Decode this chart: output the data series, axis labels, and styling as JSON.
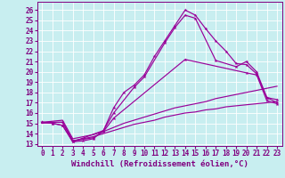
{
  "xlabel": "Windchill (Refroidissement éolien,°C)",
  "background_color": "#c8eef0",
  "line_color": "#990099",
  "xlim": [
    -0.5,
    23.5
  ],
  "ylim": [
    12.8,
    26.8
  ],
  "yticks": [
    13,
    14,
    15,
    16,
    17,
    18,
    19,
    20,
    21,
    22,
    23,
    24,
    25,
    26
  ],
  "xticks": [
    0,
    1,
    2,
    3,
    4,
    5,
    6,
    7,
    8,
    9,
    10,
    11,
    12,
    13,
    14,
    15,
    16,
    17,
    18,
    19,
    20,
    21,
    22,
    23
  ],
  "curve1_x": [
    0,
    1,
    2,
    3,
    4,
    5,
    6,
    7,
    8,
    9,
    10,
    11,
    12,
    13,
    14,
    15,
    16,
    17,
    18,
    19,
    20,
    21,
    22,
    23
  ],
  "curve1_y": [
    15.1,
    15.0,
    14.8,
    13.2,
    13.3,
    13.5,
    14.3,
    16.5,
    18.0,
    18.7,
    19.7,
    21.5,
    23.0,
    24.5,
    26.0,
    25.5,
    24.2,
    23.0,
    22.0,
    20.8,
    20.7,
    19.8,
    17.5,
    17.0
  ],
  "curve2_x": [
    0,
    1,
    2,
    3,
    6,
    7,
    9,
    10,
    12,
    13,
    14,
    15,
    17,
    19,
    20,
    21,
    22,
    23
  ],
  "curve2_y": [
    15.1,
    15.0,
    14.8,
    13.2,
    14.3,
    16.0,
    18.5,
    19.5,
    22.8,
    24.3,
    25.5,
    25.2,
    21.1,
    20.5,
    21.0,
    20.0,
    17.5,
    17.3
  ],
  "curve3_x": [
    0,
    2,
    3,
    5,
    6,
    7,
    14,
    20,
    21,
    22,
    23
  ],
  "curve3_y": [
    15.1,
    15.1,
    13.3,
    13.6,
    14.2,
    15.5,
    21.2,
    19.9,
    19.7,
    17.2,
    16.9
  ],
  "curve4_x": [
    0,
    1,
    2,
    3,
    4,
    5,
    6,
    7,
    8,
    9,
    10,
    11,
    12,
    13,
    14,
    15,
    16,
    17,
    18,
    19,
    20,
    21,
    22,
    23
  ],
  "curve4_y": [
    15.1,
    15.2,
    15.3,
    13.5,
    13.7,
    13.9,
    14.2,
    14.6,
    15.0,
    15.3,
    15.6,
    15.9,
    16.2,
    16.5,
    16.7,
    16.9,
    17.1,
    17.4,
    17.6,
    17.8,
    18.0,
    18.2,
    18.4,
    18.6
  ],
  "curve5_x": [
    0,
    1,
    2,
    3,
    4,
    5,
    6,
    7,
    8,
    9,
    10,
    11,
    12,
    13,
    14,
    15,
    16,
    17,
    18,
    19,
    20,
    21,
    22,
    23
  ],
  "curve5_y": [
    15.0,
    15.1,
    15.1,
    13.3,
    13.5,
    13.7,
    14.0,
    14.3,
    14.6,
    14.9,
    15.1,
    15.3,
    15.6,
    15.8,
    16.0,
    16.1,
    16.3,
    16.4,
    16.6,
    16.7,
    16.8,
    16.9,
    17.0,
    17.1
  ],
  "font_color": "#800080",
  "grid_color": "#aadddd",
  "tick_fontsize": 5.5,
  "label_fontsize": 6.5
}
